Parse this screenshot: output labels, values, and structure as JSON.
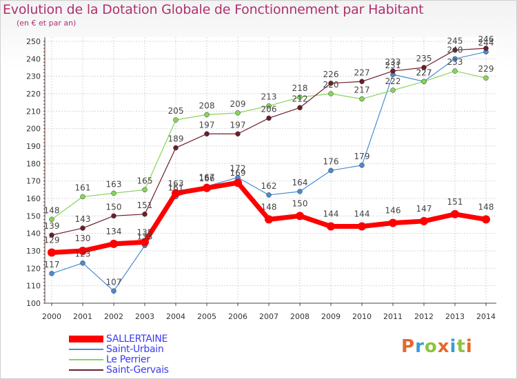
{
  "header": {
    "title": "Evolution de la Dotation Globale de Fonctionnement par Habitant",
    "subtitle": "(en € et par an)"
  },
  "logo": {
    "text": "Proxiti",
    "letters": [
      {
        "ch": "P",
        "color": "#e8672a"
      },
      {
        "ch": "r",
        "color": "#3c9ad6"
      },
      {
        "ch": "o",
        "color": "#8cc43f"
      },
      {
        "ch": "x",
        "color": "#e8672a"
      },
      {
        "ch": "i",
        "color": "#3c9ad6"
      },
      {
        "ch": "t",
        "color": "#8cc43f"
      },
      {
        "ch": "i",
        "color": "#e8672a"
      }
    ]
  },
  "chart_data": {
    "type": "line",
    "title": "Evolution de la Dotation Globale de Fonctionnement par Habitant",
    "subtitle": "(en € et par an)",
    "x": [
      "2000",
      "2001",
      "2002",
      "2003",
      "2004",
      "2005",
      "2006",
      "2007",
      "2008",
      "2009",
      "2010",
      "2011",
      "2012",
      "2013",
      "2014"
    ],
    "ylim": [
      100,
      250
    ],
    "yticks": [
      100,
      110,
      120,
      130,
      140,
      150,
      160,
      170,
      180,
      190,
      200,
      210,
      220,
      230,
      240,
      250
    ],
    "grid": true,
    "legend_position": "bottom-left",
    "series": [
      {
        "name": "SALLERTAINE",
        "color": "#ff0000",
        "values": [
          129,
          130,
          134,
          135,
          163,
          166,
          169,
          148,
          150,
          144,
          144,
          146,
          147,
          151,
          148
        ]
      },
      {
        "name": "Saint-Urbain",
        "color": "#4a8bd0",
        "values": [
          117,
          123,
          107,
          133,
          161,
          167,
          172,
          162,
          164,
          176,
          179,
          231,
          227,
          240,
          244
        ]
      },
      {
        "name": "Le Perrier",
        "color": "#88d45a",
        "values": [
          148,
          161,
          163,
          165,
          205,
          208,
          209,
          213,
          218,
          220,
          217,
          222,
          227,
          233,
          229
        ]
      },
      {
        "name": "Saint-Gervais",
        "color": "#6b1e2a",
        "values": [
          139,
          143,
          150,
          151,
          189,
          197,
          197,
          206,
          212,
          226,
          227,
          233,
          235,
          245,
          246
        ]
      }
    ]
  }
}
